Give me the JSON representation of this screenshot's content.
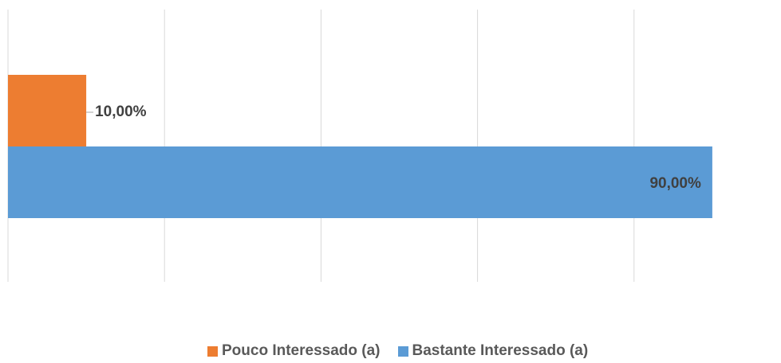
{
  "chart_data": {
    "type": "bar",
    "orientation": "horizontal",
    "title": "",
    "xlabel": "",
    "ylabel": "",
    "xlim": [
      0,
      1
    ],
    "grid": true,
    "legend_position": "bottom",
    "series": [
      {
        "name": "Pouco Interessado (a)",
        "values": [
          0.1
        ],
        "label": "10,00%",
        "color": "#ED7D31"
      },
      {
        "name": "Bastante Interessado (a)",
        "values": [
          0.9
        ],
        "label": "90,00%",
        "color": "#5B9BD5"
      }
    ]
  }
}
